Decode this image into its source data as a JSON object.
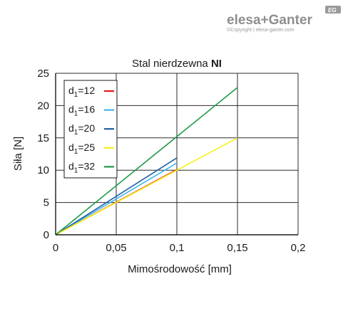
{
  "brand": {
    "logo_text": "elesa+Ganter",
    "badge": "EG",
    "copyright": "©Copyright | elesa-ganter.com"
  },
  "chart_data": {
    "type": "line",
    "title_prefix": "Stal nierdzewna ",
    "title_bold": "NI",
    "xlabel": "Mimośrodowość [mm]",
    "ylabel": "Siła [N]",
    "xlim": [
      0,
      0.2
    ],
    "ylim": [
      0,
      25
    ],
    "x_ticks": [
      {
        "value": 0,
        "label": "0"
      },
      {
        "value": 0.05,
        "label": "0,05"
      },
      {
        "value": 0.1,
        "label": "0,1"
      },
      {
        "value": 0.15,
        "label": "0,15"
      },
      {
        "value": 0.2,
        "label": "0,2"
      }
    ],
    "y_ticks": [
      {
        "value": 0,
        "label": "0"
      },
      {
        "value": 5,
        "label": "5"
      },
      {
        "value": 10,
        "label": "10"
      },
      {
        "value": 15,
        "label": "15"
      },
      {
        "value": 20,
        "label": "20"
      },
      {
        "value": 25,
        "label": "25"
      }
    ],
    "grid": true,
    "legend_position": "top-left",
    "series": [
      {
        "name": "d1=12",
        "label_main": "d",
        "label_sub": "1",
        "label_rest": "=12",
        "color": "#e8141b",
        "x": [
          0,
          0.1
        ],
        "y": [
          0,
          10.1
        ]
      },
      {
        "name": "d1=16",
        "label_main": "d",
        "label_sub": "1",
        "label_rest": "=16",
        "color": "#3fb5ea",
        "x": [
          0,
          0.1
        ],
        "y": [
          0,
          11.1
        ]
      },
      {
        "name": "d1=20",
        "label_main": "d",
        "label_sub": "1",
        "label_rest": "=20",
        "color": "#1f5fa8",
        "x": [
          0,
          0.1
        ],
        "y": [
          0,
          11.9
        ]
      },
      {
        "name": "d1=25",
        "label_main": "d",
        "label_sub": "1",
        "label_rest": "=25",
        "color": "#f6ef16",
        "x": [
          0,
          0.15
        ],
        "y": [
          0,
          15
        ]
      },
      {
        "name": "d1=32",
        "label_main": "d",
        "label_sub": "1",
        "label_rest": "=32",
        "color": "#1f9a48",
        "x": [
          0,
          0.15
        ],
        "y": [
          0,
          22.8
        ]
      }
    ]
  }
}
